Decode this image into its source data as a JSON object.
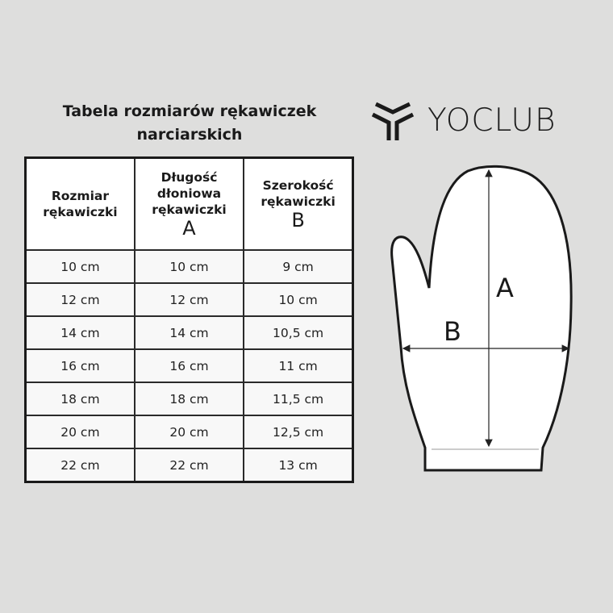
{
  "title": "Tabela rozmiarów rękawiczek narciarskich",
  "logo": {
    "text": "YOCLUB",
    "icon": "yoclub-y-icon"
  },
  "table": {
    "headers": [
      {
        "label": "Rozmiar rękawiczki",
        "letter": ""
      },
      {
        "label": "Długość dłoniowa rękawiczki",
        "letter": "A"
      },
      {
        "label": "Szerokość rękawiczki",
        "letter": "B"
      }
    ],
    "rows": [
      [
        "10 cm",
        "10 cm",
        "9 cm"
      ],
      [
        "12 cm",
        "12 cm",
        "10 cm"
      ],
      [
        "14 cm",
        "14 cm",
        "10,5 cm"
      ],
      [
        "16 cm",
        "16 cm",
        "11 cm"
      ],
      [
        "18 cm",
        "18 cm",
        "11,5 cm"
      ],
      [
        "20 cm",
        "20 cm",
        "12,5 cm"
      ],
      [
        "22 cm",
        "22 cm",
        "13 cm"
      ]
    ]
  },
  "diagram": {
    "length_label": "A",
    "width_label": "B"
  }
}
